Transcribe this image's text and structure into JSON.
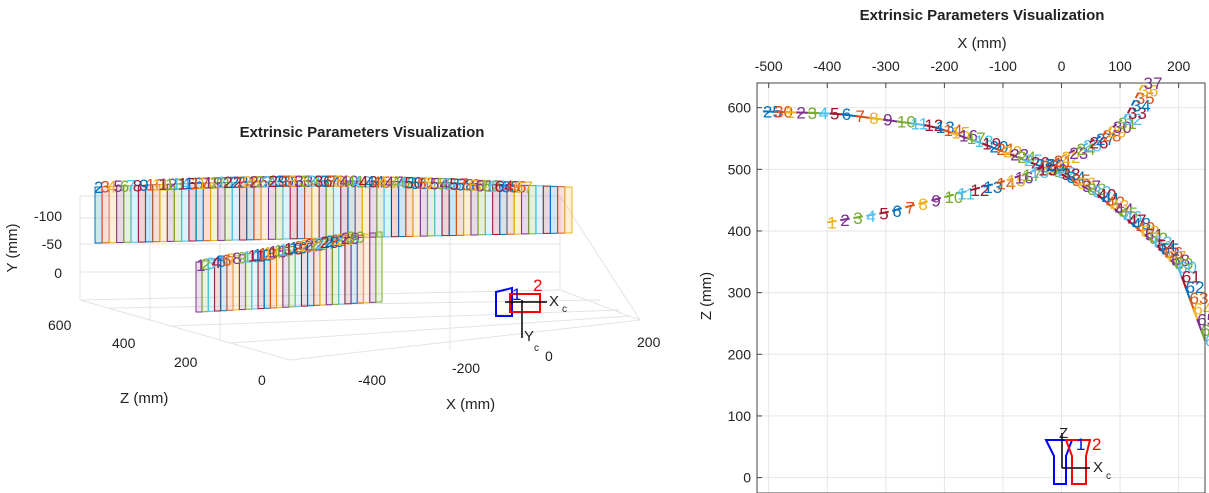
{
  "colors": [
    "#0072bd",
    "#d95319",
    "#edb120",
    "#7e2f8e",
    "#77ac30",
    "#4dbeee",
    "#a2142f"
  ],
  "chart_data": [
    {
      "type": "3d-camera-extrinsics",
      "title": "Extrinsic Parameters Visualization",
      "xlabel": "X (mm)",
      "ylabel": "Y (mm)",
      "zlabel": "Z (mm)",
      "x_ticks": [
        "-400",
        "-200",
        "0",
        "200"
      ],
      "y_ticks": [
        "-100",
        "-50",
        "0"
      ],
      "z_ticks": [
        "600",
        "400",
        "200",
        "0"
      ],
      "upper_board_labels": [
        "2",
        "3",
        "4",
        "5",
        "6",
        "7",
        "8",
        "9",
        "10",
        "11",
        "12",
        "13",
        "14",
        "15",
        "16",
        "17",
        "18",
        "19",
        "20",
        "21",
        "22",
        "23",
        "24",
        "25",
        "26",
        "27",
        "28",
        "29",
        "30",
        "31",
        "32",
        "33",
        "34",
        "35",
        "36",
        "37",
        "38",
        "39",
        "40",
        "41",
        "42",
        "43",
        "44",
        "45",
        "46",
        "47",
        "48",
        "49",
        "50",
        "51",
        "52",
        "53",
        "54",
        "55",
        "56",
        "57",
        "58",
        "59",
        "60",
        "61",
        "62",
        "63",
        "64",
        "65",
        "66",
        "67"
      ],
      "lower_board_labels": [
        "1",
        "2",
        "3",
        "4",
        "5",
        "6",
        "7",
        "8",
        "9",
        "10",
        "11",
        "12",
        "13",
        "14",
        "15",
        "16",
        "17",
        "18",
        "19",
        "20",
        "21",
        "22",
        "23",
        "24",
        "25",
        "26",
        "27",
        "28",
        "29",
        "30"
      ],
      "camera_labels": {
        "x": "X",
        "y": "Y",
        "sub": "c",
        "marker_blue": "1",
        "marker_red": "2"
      }
    },
    {
      "type": "2d-top-view-extrinsics",
      "title": "Extrinsic Parameters Visualization",
      "xlabel": "X (mm)",
      "ylabel": "Z (mm)",
      "xlim": [
        -520,
        245
      ],
      "ylim": [
        -25,
        640
      ],
      "x_ticks": [
        -500,
        -400,
        -300,
        -200,
        -100,
        0,
        100,
        200
      ],
      "y_ticks": [
        0,
        100,
        200,
        300,
        400,
        500,
        600
      ],
      "grid": true,
      "trajectory_a": {
        "description_points": [
          [
            -510,
            594
          ],
          [
            -380,
            590
          ],
          [
            -220,
            570
          ],
          [
            -130,
            540
          ],
          [
            -50,
            510
          ],
          [
            0,
            492
          ],
          [
            60,
            460
          ],
          [
            110,
            420
          ],
          [
            160,
            380
          ],
          [
            200,
            340
          ],
          [
            245,
            222
          ]
        ],
        "labels": [
          "25",
          "30",
          "1",
          "2",
          "3",
          "4",
          "5",
          "6",
          "7",
          "8",
          "9",
          "10",
          "11",
          "12",
          "13",
          "14",
          "15",
          "16",
          "17",
          "18",
          "19",
          "20",
          "21",
          "22",
          "23",
          "24",
          "25",
          "26",
          "27",
          "28",
          "29",
          "30",
          "31",
          "32",
          "33",
          "34",
          "35",
          "36",
          "37",
          "38",
          "39",
          "40",
          "41",
          "42",
          "43",
          "44",
          "45",
          "46",
          "47",
          "48",
          "49",
          "50",
          "51",
          "52",
          "53",
          "54",
          "55",
          "56",
          "57",
          "58",
          "59",
          "60",
          "61",
          "62",
          "63",
          "64",
          "65",
          "66",
          "67"
        ]
      },
      "trajectory_b": {
        "description_points": [
          [
            -400,
            414
          ],
          [
            -300,
            430
          ],
          [
            -200,
            455
          ],
          [
            -100,
            480
          ],
          [
            -40,
            500
          ],
          [
            20,
            530
          ],
          [
            70,
            555
          ],
          [
            110,
            585
          ],
          [
            140,
            640
          ]
        ],
        "labels": [
          "1",
          "2",
          "3",
          "4",
          "5",
          "6",
          "7",
          "8",
          "9",
          "10",
          "11",
          "12",
          "13",
          "14",
          "15",
          "16",
          "17",
          "18",
          "19",
          "20",
          "21",
          "22",
          "23",
          "24",
          "25",
          "26",
          "27",
          "28",
          "29",
          "30",
          "31",
          "32",
          "33",
          "34",
          "35",
          "36",
          "37"
        ]
      },
      "camera_labels": {
        "x": "X",
        "z": "Z",
        "sub": "c",
        "marker_blue": "1",
        "marker_red": "2"
      }
    }
  ]
}
